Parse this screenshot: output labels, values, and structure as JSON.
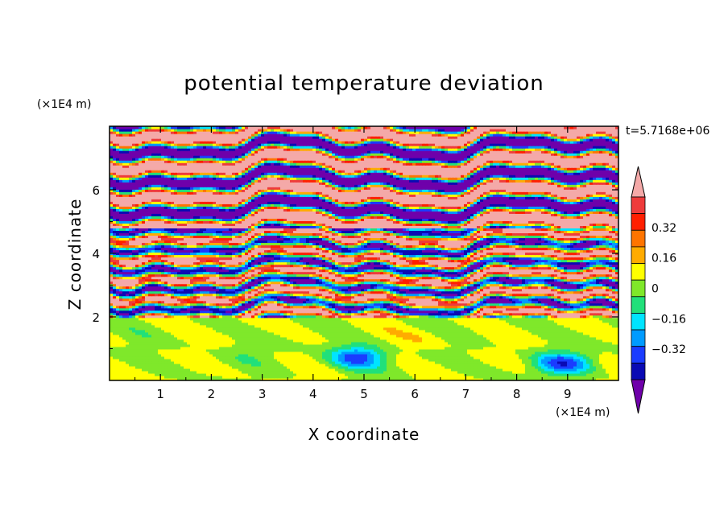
{
  "chart_data": {
    "type": "heatmap",
    "title": "potential temperature deviation",
    "xlabel": "X coordinate",
    "ylabel": "Z coordinate",
    "x_unit_label": "(×1E4 m)",
    "y_unit_label": "(×1E4 m)",
    "time_label": "t=5.7168e+06",
    "xlim": [
      0,
      10
    ],
    "ylim": [
      0,
      8
    ],
    "x_ticks": [
      1,
      2,
      3,
      4,
      5,
      6,
      7,
      8,
      9
    ],
    "y_ticks": [
      2,
      4,
      6
    ],
    "x_tick_labels": [
      "1",
      "2",
      "3",
      "4",
      "5",
      "6",
      "7",
      "8",
      "9"
    ],
    "y_tick_labels": [
      "2",
      "4",
      "6"
    ],
    "colorbar": {
      "levels": [
        -0.48,
        -0.4,
        -0.32,
        -0.24,
        -0.16,
        -0.08,
        0,
        0.08,
        0.16,
        0.24,
        0.32,
        0.4,
        0.48
      ],
      "colors": [
        "#6f00aa",
        "#0a0ab4",
        "#1a3cff",
        "#009bff",
        "#00e4ff",
        "#21e07a",
        "#7fe82a",
        "#ffff00",
        "#ffab00",
        "#ff7400",
        "#ff1f00",
        "#ee3b3b",
        "#f4a9a8"
      ],
      "tick_values": [
        0.32,
        0.16,
        0,
        -0.16,
        -0.32
      ],
      "tick_labels": [
        "0.32",
        "0.16",
        "0",
        "−0.16",
        "−0.32"
      ],
      "extend": "both"
    },
    "field_description_regions": [
      {
        "z_range": [
          0,
          2.0
        ],
        "dominant_value": 0.0,
        "note": "near-neutral green layer with convective cells"
      },
      {
        "z_range": [
          2.0,
          4.8
        ],
        "dominant_value": "mixed",
        "note": "turbulent mixing band with all levels"
      },
      {
        "z_range": [
          4.8,
          8.0
        ],
        "dominant_value": "alternating ±>0.48",
        "note": "horizontal stratified bands"
      }
    ]
  }
}
